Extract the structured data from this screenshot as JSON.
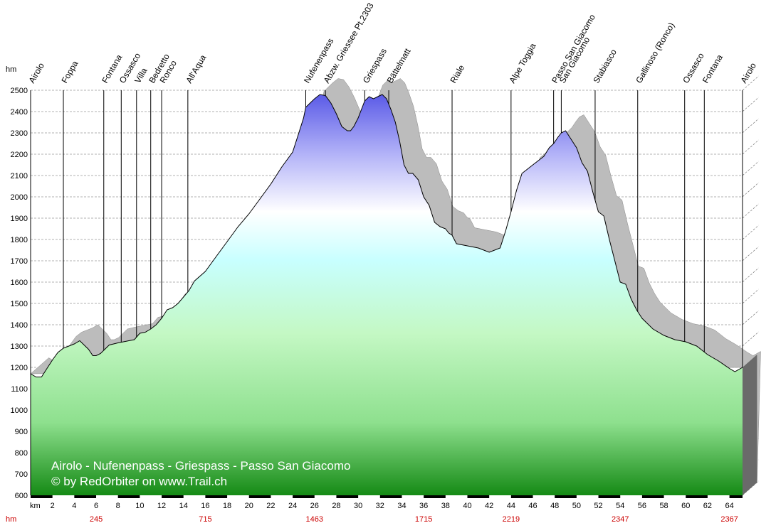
{
  "chart_data": {
    "type": "area",
    "title": "Airolo - Nufenenpass - Griespass - Passo San Giacomo",
    "credit": "© by RedOrbiter on www.Trail.ch",
    "ylabel": "hm",
    "xlabel": "km",
    "xlim": [
      0,
      65.2
    ],
    "ylim": [
      600,
      2500
    ],
    "y_ticks": [
      600,
      700,
      800,
      900,
      1000,
      1100,
      1200,
      1300,
      1400,
      1500,
      1600,
      1700,
      1800,
      1900,
      2000,
      2100,
      2200,
      2300,
      2400,
      2500
    ],
    "x_ticks": [
      2,
      4,
      6,
      8,
      10,
      12,
      14,
      16,
      18,
      20,
      22,
      24,
      26,
      28,
      30,
      32,
      34,
      36,
      38,
      40,
      42,
      44,
      46,
      48,
      50,
      52,
      54,
      56,
      58,
      60,
      62,
      64
    ],
    "grid": true,
    "colors": {
      "profile_line": "#000000",
      "shadow": "#bcbcbc",
      "fill_top": "#5555e6",
      "fill_mid": "#c8ffff",
      "fill_low": "#c4f8c4",
      "fill_bottom": "#158a15",
      "hm_text": "#cc0000",
      "side_wall": "#6a6a6a"
    },
    "waypoints": [
      {
        "name": "Airolo",
        "km": 0.0
      },
      {
        "name": "Foppa",
        "km": 3.0
      },
      {
        "name": "Fontana",
        "km": 6.7
      },
      {
        "name": "Ossasco",
        "km": 8.3
      },
      {
        "name": "Villa",
        "km": 9.7
      },
      {
        "name": "Bedretto",
        "km": 11.0
      },
      {
        "name": "Ronco",
        "km": 12.0
      },
      {
        "name": "All'Aqua",
        "km": 14.4
      },
      {
        "name": "Nufenenpass",
        "km": 25.2
      },
      {
        "name": "Abzw. Griessee Pt.2303",
        "km": 27.0
      },
      {
        "name": "Griespass",
        "km": 30.6
      },
      {
        "name": "Bättelmatt",
        "km": 32.8
      },
      {
        "name": "Riale",
        "km": 38.6
      },
      {
        "name": "Alpe Toggia",
        "km": 44.0
      },
      {
        "name": "Passo San Giacomo",
        "km": 47.9
      },
      {
        "name": "San Giacomo",
        "km": 48.6
      },
      {
        "name": "Stabiasco",
        "km": 51.7
      },
      {
        "name": "Gallinoso (Ronco)",
        "km": 55.6
      },
      {
        "name": "Ossasco",
        "km": 59.9
      },
      {
        "name": "Fontana",
        "km": 61.7
      },
      {
        "name": "Airolo",
        "km": 65.2
      }
    ],
    "cumulative_ascent": [
      {
        "km": 6.0,
        "hm": "245"
      },
      {
        "km": 16.0,
        "hm": "715"
      },
      {
        "km": 26.0,
        "hm": "1463"
      },
      {
        "km": 36.0,
        "hm": "1715"
      },
      {
        "km": 44.0,
        "hm": "2219"
      },
      {
        "km": 54.0,
        "hm": "2347"
      },
      {
        "km": 64.0,
        "hm": "2367"
      }
    ],
    "series": [
      {
        "x": [
          0,
          0.5,
          1.0,
          1.5,
          2.0,
          2.5,
          3.0,
          3.5,
          4.0,
          4.5,
          5.0,
          5.3,
          5.7,
          6.0,
          6.4,
          6.8,
          7.2,
          7.6,
          8.0,
          8.5,
          9.0,
          9.5,
          10.0,
          10.5,
          11.0,
          11.5,
          12.0,
          12.5,
          13.0,
          13.5,
          14.0,
          14.5,
          15.0,
          16.0,
          17.0,
          18.0,
          19.0,
          20.0,
          21.0,
          22.0,
          23.0,
          24.0,
          24.5,
          25.0,
          25.2,
          25.6,
          26.0,
          26.5,
          27.0,
          27.5,
          28.0,
          28.5,
          29.0,
          29.3,
          29.6,
          30.0,
          30.3,
          30.6,
          31.0,
          31.4,
          31.8,
          32.2,
          32.6,
          33.0,
          33.4,
          33.8,
          34.2,
          34.6,
          35.0,
          35.5,
          36.0,
          36.5,
          37.0,
          37.5,
          38.0,
          38.3,
          38.6,
          39.0,
          40.0,
          41.0,
          42.0,
          43.0,
          43.5,
          44.0,
          44.5,
          45.0,
          46.0,
          47.0,
          47.5,
          47.9,
          48.3,
          48.6,
          49.0,
          49.5,
          50.0,
          50.5,
          51.0,
          51.5,
          52.0,
          52.5,
          53.0,
          53.5,
          54.0,
          54.5,
          55.0,
          55.5,
          56.0,
          57.0,
          58.0,
          59.0,
          60.0,
          61.0,
          61.5,
          62.0,
          63.0,
          64.0,
          64.5,
          65.2
        ],
        "y": [
          1170,
          1155,
          1155,
          1195,
          1235,
          1270,
          1290,
          1300,
          1310,
          1325,
          1300,
          1285,
          1255,
          1255,
          1265,
          1285,
          1305,
          1310,
          1315,
          1320,
          1325,
          1330,
          1360,
          1365,
          1380,
          1400,
          1430,
          1470,
          1480,
          1500,
          1530,
          1560,
          1605,
          1650,
          1720,
          1790,
          1860,
          1920,
          1990,
          2060,
          2140,
          2210,
          2290,
          2370,
          2420,
          2440,
          2460,
          2480,
          2475,
          2440,
          2390,
          2330,
          2310,
          2310,
          2330,
          2370,
          2410,
          2450,
          2470,
          2460,
          2470,
          2480,
          2460,
          2410,
          2350,
          2260,
          2150,
          2110,
          2110,
          2080,
          2000,
          1960,
          1880,
          1860,
          1850,
          1830,
          1820,
          1780,
          1770,
          1760,
          1740,
          1760,
          1840,
          1930,
          2030,
          2110,
          2150,
          2190,
          2230,
          2250,
          2280,
          2300,
          2310,
          2270,
          2230,
          2160,
          2120,
          2020,
          1930,
          1910,
          1800,
          1700,
          1600,
          1590,
          1520,
          1470,
          1430,
          1380,
          1350,
          1330,
          1320,
          1300,
          1280,
          1260,
          1230,
          1195,
          1180,
          1200
        ]
      }
    ]
  }
}
